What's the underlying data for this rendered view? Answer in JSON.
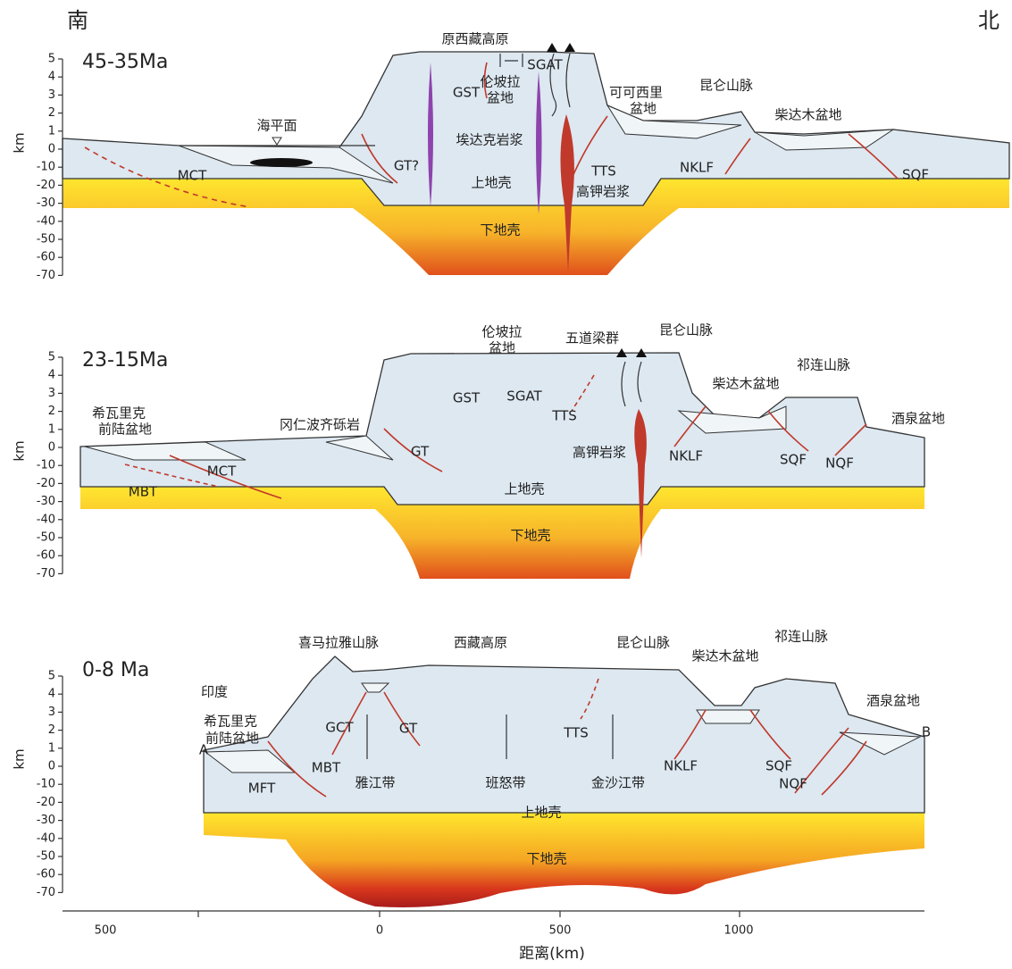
{
  "header": {
    "south": "南",
    "north": "北"
  },
  "y_axis": {
    "label": "km",
    "ticks": [
      "5",
      "4",
      "3",
      "2",
      "1",
      "0",
      "-10",
      "-20",
      "-30",
      "-40",
      "-50",
      "-60",
      "-70"
    ]
  },
  "panels": [
    {
      "age": "45-35Ma",
      "labels": [
        "原西藏高原",
        "SGAT",
        "GST",
        "伦坡拉",
        "盆地",
        "可可西里",
        "盆地",
        "昆仑山脉",
        "海平面",
        "柴达木盆地",
        "埃达克岩浆",
        "MCT",
        "GT?",
        "TTS",
        "NKLF",
        "SQF",
        "上地壳",
        "高钾岩浆",
        "下地壳"
      ]
    },
    {
      "age": "23-15Ma",
      "labels": [
        "伦坡拉",
        "盆地",
        "五道梁群",
        "昆仑山脉",
        "祁连山脉",
        "柴达木盆地",
        "GST",
        "SGAT",
        "TTS",
        "希瓦里克",
        "前陆盆地",
        "冈仁波齐砾岩",
        "酒泉盆地",
        "GT",
        "高钾岩浆",
        "NKLF",
        "SQF",
        "NQF",
        "MCT",
        "MBT",
        "上地壳",
        "下地壳"
      ]
    },
    {
      "age": "0-8 Ma",
      "labels": [
        "喜马拉雅山脉",
        "西藏高原",
        "昆仑山脉",
        "柴达木盆地",
        "祁连山脉",
        "印度",
        "酒泉盆地",
        "希瓦里克",
        "前陆盆地",
        "A",
        "B",
        "GCT",
        "GT",
        "TTS",
        "NKLF",
        "SQF",
        "MBT",
        "NQF",
        "MFT",
        "雅江带",
        "班怒带",
        "金沙江带",
        "上地壳",
        "下地壳"
      ]
    }
  ],
  "x_axis": {
    "label": "距离(km)",
    "ticks": [
      "500",
      "0",
      "500",
      "1000"
    ]
  }
}
